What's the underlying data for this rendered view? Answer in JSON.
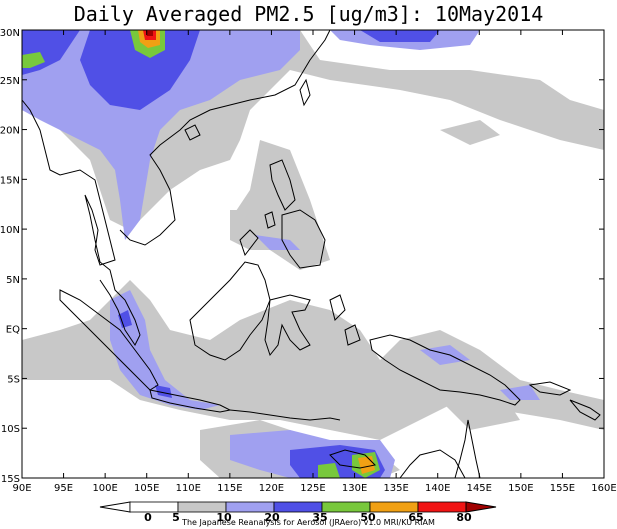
{
  "title": "Daily Averaged PM2.5 [ug/m3]: 10May2014",
  "credit": "The Japanese Reanalysis for Aerosol (JRAero) v1.0 MRI/KU RIAM",
  "map": {
    "lon_range": [
      90,
      160
    ],
    "lat_range": [
      -15,
      30
    ],
    "lon_ticks": [
      {
        "value": 90,
        "label": "90E"
      },
      {
        "value": 95,
        "label": "95E"
      },
      {
        "value": 100,
        "label": "100E"
      },
      {
        "value": 105,
        "label": "105E"
      },
      {
        "value": 110,
        "label": "110E"
      },
      {
        "value": 115,
        "label": "115E"
      },
      {
        "value": 120,
        "label": "120E"
      },
      {
        "value": 125,
        "label": "125E"
      },
      {
        "value": 130,
        "label": "130E"
      },
      {
        "value": 135,
        "label": "135E"
      },
      {
        "value": 140,
        "label": "140E"
      },
      {
        "value": 145,
        "label": "145E"
      },
      {
        "value": 150,
        "label": "150E"
      },
      {
        "value": 155,
        "label": "155E"
      },
      {
        "value": 160,
        "label": "160E"
      }
    ],
    "lat_ticks": [
      {
        "value": 30,
        "label": "30N"
      },
      {
        "value": 25,
        "label": "25N"
      },
      {
        "value": 20,
        "label": "20N"
      },
      {
        "value": 15,
        "label": "15N"
      },
      {
        "value": 10,
        "label": "10N"
      },
      {
        "value": 5,
        "label": "5N"
      },
      {
        "value": 0,
        "label": "EQ"
      },
      {
        "value": -5,
        "label": "5S"
      },
      {
        "value": -10,
        "label": "10S"
      },
      {
        "value": -15,
        "label": "15S"
      }
    ]
  },
  "colorbar": {
    "levels": [
      {
        "label": "0",
        "color": "#ffffff"
      },
      {
        "label": "5",
        "color": "#ffffff"
      },
      {
        "label": "10",
        "color": "#c8c8c8"
      },
      {
        "label": "20",
        "color": "#a0a0f0"
      },
      {
        "label": "35",
        "color": "#5050e6"
      },
      {
        "label": "50",
        "color": "#78c83c"
      },
      {
        "label": "65",
        "color": "#f0a014"
      },
      {
        "label": "80",
        "color": "#f01414"
      }
    ],
    "over_color": "#a00000"
  }
}
